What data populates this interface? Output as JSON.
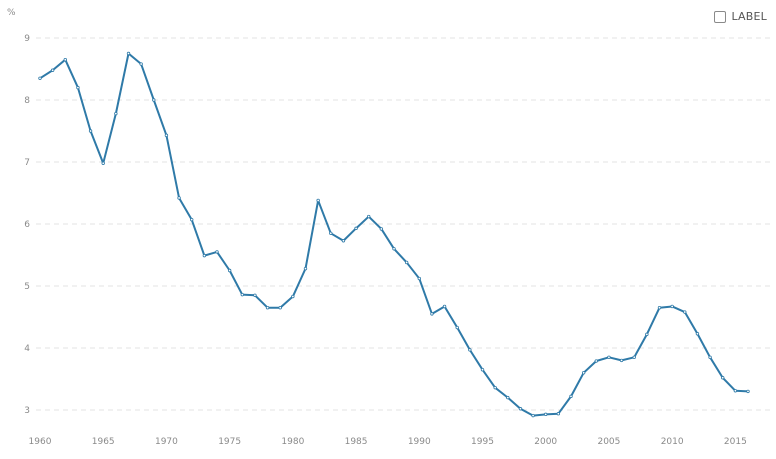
{
  "legend": {
    "label": "LABEL",
    "checked": false
  },
  "chart_data": {
    "type": "line",
    "title": "",
    "xlabel": "",
    "ylabel": "%",
    "xlim": [
      1960,
      2016
    ],
    "ylim": [
      3,
      9
    ],
    "x_ticks": [
      1960,
      1965,
      1970,
      1975,
      1980,
      1985,
      1990,
      1995,
      2000,
      2005,
      2010,
      2015
    ],
    "y_ticks": [
      3,
      4,
      5,
      6,
      7,
      8,
      9
    ],
    "grid": true,
    "legend_position": "top-right",
    "color": "#2f7aa8",
    "x": [
      1960,
      1961,
      1962,
      1963,
      1964,
      1965,
      1966,
      1967,
      1968,
      1969,
      1970,
      1971,
      1972,
      1973,
      1974,
      1975,
      1976,
      1977,
      1978,
      1979,
      1980,
      1981,
      1982,
      1983,
      1984,
      1985,
      1986,
      1987,
      1988,
      1989,
      1990,
      1991,
      1992,
      1993,
      1994,
      1995,
      1996,
      1997,
      1998,
      1999,
      2000,
      2001,
      2002,
      2003,
      2004,
      2005,
      2006,
      2007,
      2008,
      2009,
      2010,
      2011,
      2012,
      2013,
      2014,
      2015,
      2016
    ],
    "series": [
      {
        "values": [
          8.35,
          8.48,
          8.65,
          8.2,
          7.5,
          6.98,
          7.78,
          8.75,
          8.58,
          8.0,
          7.43,
          6.42,
          6.07,
          5.49,
          5.55,
          5.25,
          4.86,
          4.85,
          4.65,
          4.65,
          4.83,
          5.28,
          6.38,
          5.85,
          5.73,
          5.93,
          6.12,
          5.92,
          5.6,
          5.38,
          5.12,
          4.55,
          4.67,
          4.33,
          3.97,
          3.65,
          3.36,
          3.2,
          3.02,
          2.91,
          2.93,
          2.94,
          3.22,
          3.6,
          3.79,
          3.85,
          3.8,
          3.85,
          4.22,
          4.65,
          4.67,
          4.58,
          4.23,
          3.85,
          3.52,
          3.31,
          3.3
        ]
      }
    ]
  }
}
